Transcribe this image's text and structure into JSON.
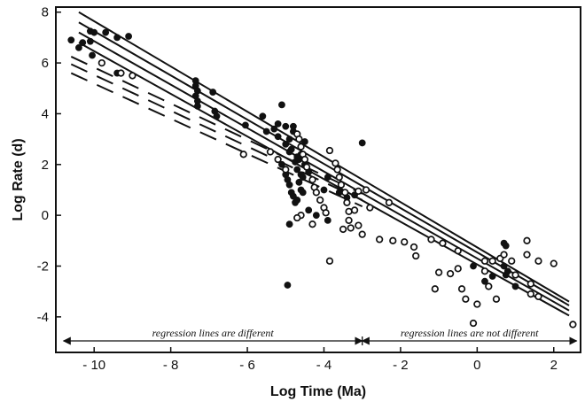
{
  "chart_data": {
    "type": "scatter",
    "xlabel": "Log Time (Ma)",
    "ylabel": "Log Rate (d)",
    "xlim": [
      -11,
      2.7
    ],
    "ylim": [
      -5.4,
      8.2
    ],
    "xticks": [
      -10,
      -8,
      -6,
      -4,
      -2,
      0,
      2
    ],
    "yticks": [
      -4,
      -2,
      0,
      2,
      4,
      6,
      8
    ],
    "grid": false,
    "legend": "none",
    "annotations": [
      {
        "text": "regression lines are different",
        "x_range": [
          -10.8,
          -3
        ],
        "y": -5.5
      },
      {
        "text": "regression lines are not different",
        "x_range": [
          -3,
          2.6
        ],
        "y": -5.5
      }
    ],
    "divider_x": -3,
    "series": [
      {
        "marker": "filled-circle",
        "points": [
          [
            -10.6,
            6.9
          ],
          [
            -10.4,
            6.6
          ],
          [
            -10.3,
            6.8
          ],
          [
            -10.1,
            7.25
          ],
          [
            -10.0,
            7.2
          ],
          [
            -10.1,
            6.85
          ],
          [
            -10.05,
            6.3
          ],
          [
            -9.7,
            7.2
          ],
          [
            -9.4,
            7.0
          ],
          [
            -9.1,
            7.05
          ],
          [
            -9.4,
            5.6
          ],
          [
            -7.35,
            5.3
          ],
          [
            -7.35,
            5.1
          ],
          [
            -7.3,
            4.9
          ],
          [
            -7.35,
            4.7
          ],
          [
            -7.3,
            4.5
          ],
          [
            -7.3,
            4.3
          ],
          [
            -6.9,
            4.85
          ],
          [
            -6.85,
            4.1
          ],
          [
            -6.8,
            3.9
          ],
          [
            -6.05,
            3.55
          ],
          [
            -5.6,
            3.9
          ],
          [
            -5.5,
            3.3
          ],
          [
            -5.3,
            3.4
          ],
          [
            -5.2,
            3.6
          ],
          [
            -5.2,
            3.1
          ],
          [
            -5.1,
            4.35
          ],
          [
            -5.0,
            3.5
          ],
          [
            -5.0,
            2.8
          ],
          [
            -4.9,
            2.5
          ],
          [
            -4.8,
            3.3
          ],
          [
            -4.75,
            2.1
          ],
          [
            -4.7,
            1.8
          ],
          [
            -4.65,
            2.2
          ],
          [
            -4.6,
            1.6
          ],
          [
            -4.6,
            1.0
          ],
          [
            -4.55,
            1.5
          ],
          [
            -4.5,
            2.9
          ],
          [
            -4.4,
            1.7
          ],
          [
            -5.1,
            2.0
          ],
          [
            -5.0,
            1.6
          ],
          [
            -4.95,
            1.4
          ],
          [
            -4.9,
            1.2
          ],
          [
            -4.85,
            0.9
          ],
          [
            -4.8,
            0.75
          ],
          [
            -4.75,
            0.5
          ],
          [
            -4.7,
            0.6
          ],
          [
            -4.6,
            2.4
          ],
          [
            -4.5,
            2.0
          ],
          [
            -4.9,
            -0.35
          ],
          [
            -4.95,
            -2.75
          ],
          [
            -4.9,
            3.0
          ],
          [
            -4.85,
            2.6
          ],
          [
            -4.8,
            3.5
          ],
          [
            -4.7,
            2.3
          ],
          [
            -4.65,
            1.3
          ],
          [
            -4.55,
            0.9
          ],
          [
            -4.4,
            0.2
          ],
          [
            -4.2,
            0.0
          ],
          [
            -4.0,
            1.0
          ],
          [
            -3.9,
            -0.2
          ],
          [
            -3.9,
            1.5
          ],
          [
            -3.6,
            0.9
          ],
          [
            -3.4,
            0.7
          ],
          [
            -3.2,
            0.8
          ],
          [
            -3.0,
            2.85
          ],
          [
            0.7,
            -1.1
          ],
          [
            0.75,
            -1.2
          ],
          [
            0.7,
            -2.0
          ],
          [
            0.75,
            -2.35
          ],
          [
            0.8,
            -2.2
          ],
          [
            1.0,
            -2.8
          ],
          [
            0.4,
            -2.4
          ],
          [
            -0.1,
            -2.0
          ],
          [
            0.2,
            -2.6
          ]
        ]
      },
      {
        "marker": "open-circle",
        "points": [
          [
            -9.8,
            6.0
          ],
          [
            -9.3,
            5.6
          ],
          [
            -9.0,
            5.5
          ],
          [
            -6.1,
            2.4
          ],
          [
            -5.4,
            2.5
          ],
          [
            -5.2,
            2.2
          ],
          [
            -5.0,
            1.8
          ],
          [
            -4.7,
            3.2
          ],
          [
            -4.65,
            3.0
          ],
          [
            -4.6,
            2.7
          ],
          [
            -4.55,
            2.4
          ],
          [
            -4.5,
            2.2
          ],
          [
            -4.45,
            1.9
          ],
          [
            -4.3,
            1.4
          ],
          [
            -4.25,
            1.1
          ],
          [
            -4.2,
            0.9
          ],
          [
            -4.1,
            0.6
          ],
          [
            -4.0,
            0.3
          ],
          [
            -3.95,
            0.1
          ],
          [
            -3.85,
            2.55
          ],
          [
            -3.7,
            2.05
          ],
          [
            -3.65,
            1.8
          ],
          [
            -3.6,
            1.5
          ],
          [
            -3.55,
            1.2
          ],
          [
            -3.45,
            0.9
          ],
          [
            -3.4,
            0.5
          ],
          [
            -3.35,
            -0.2
          ],
          [
            -3.3,
            -0.5
          ],
          [
            -3.2,
            0.2
          ],
          [
            -3.1,
            -0.4
          ],
          [
            -3.0,
            -0.75
          ],
          [
            -2.9,
            1.0
          ],
          [
            -3.1,
            0.95
          ],
          [
            -4.6,
            0.0
          ],
          [
            -4.3,
            -0.35
          ],
          [
            -4.7,
            -0.1
          ],
          [
            -3.85,
            -1.8
          ],
          [
            -3.5,
            -0.55
          ],
          [
            -2.8,
            0.3
          ],
          [
            -2.55,
            -0.95
          ],
          [
            -2.3,
            0.5
          ],
          [
            -2.2,
            -1.0
          ],
          [
            -1.9,
            -1.05
          ],
          [
            -1.65,
            -1.25
          ],
          [
            -1.6,
            -1.6
          ],
          [
            -1.2,
            -0.95
          ],
          [
            -1.0,
            -2.25
          ],
          [
            -1.1,
            -2.9
          ],
          [
            -0.9,
            -1.1
          ],
          [
            -0.7,
            -2.3
          ],
          [
            -0.5,
            -1.4
          ],
          [
            -0.5,
            -2.1
          ],
          [
            -0.4,
            -2.9
          ],
          [
            -0.3,
            -3.3
          ],
          [
            -0.1,
            -4.25
          ],
          [
            0.0,
            -3.5
          ],
          [
            0.2,
            -2.2
          ],
          [
            0.2,
            -1.8
          ],
          [
            0.3,
            -2.8
          ],
          [
            0.4,
            -1.8
          ],
          [
            0.5,
            -3.3
          ],
          [
            0.6,
            -1.7
          ],
          [
            0.7,
            -1.55
          ],
          [
            0.9,
            -1.8
          ],
          [
            1.0,
            -2.35
          ],
          [
            1.3,
            -1.0
          ],
          [
            1.4,
            -2.7
          ],
          [
            1.4,
            -3.1
          ],
          [
            1.6,
            -3.2
          ],
          [
            1.3,
            -1.55
          ],
          [
            1.6,
            -1.8
          ],
          [
            2.0,
            -1.9
          ],
          [
            2.5,
            -4.3
          ],
          [
            -3.35,
            0.15
          ]
        ]
      }
    ],
    "regression_lines": [
      {
        "style": "solid",
        "x": [
          -10.4,
          2.4
        ],
        "y": [
          8.0,
          -3.4
        ]
      },
      {
        "style": "solid",
        "x": [
          -10.4,
          2.4
        ],
        "y": [
          7.6,
          -3.55
        ]
      },
      {
        "style": "solid",
        "x": [
          -10.4,
          2.4
        ],
        "y": [
          7.2,
          -3.75
        ]
      },
      {
        "style": "solid",
        "x": [
          -10.4,
          2.4
        ],
        "y": [
          6.8,
          -3.95
        ]
      },
      {
        "style": "dashed",
        "x": [
          -10.6,
          -3.0
        ],
        "y": [
          6.25,
          0.85
        ]
      },
      {
        "style": "dashed",
        "x": [
          -10.6,
          -3.0
        ],
        "y": [
          5.95,
          0.6
        ]
      },
      {
        "style": "dashed",
        "x": [
          -10.6,
          -3.0
        ],
        "y": [
          5.6,
          0.35
        ]
      }
    ]
  }
}
